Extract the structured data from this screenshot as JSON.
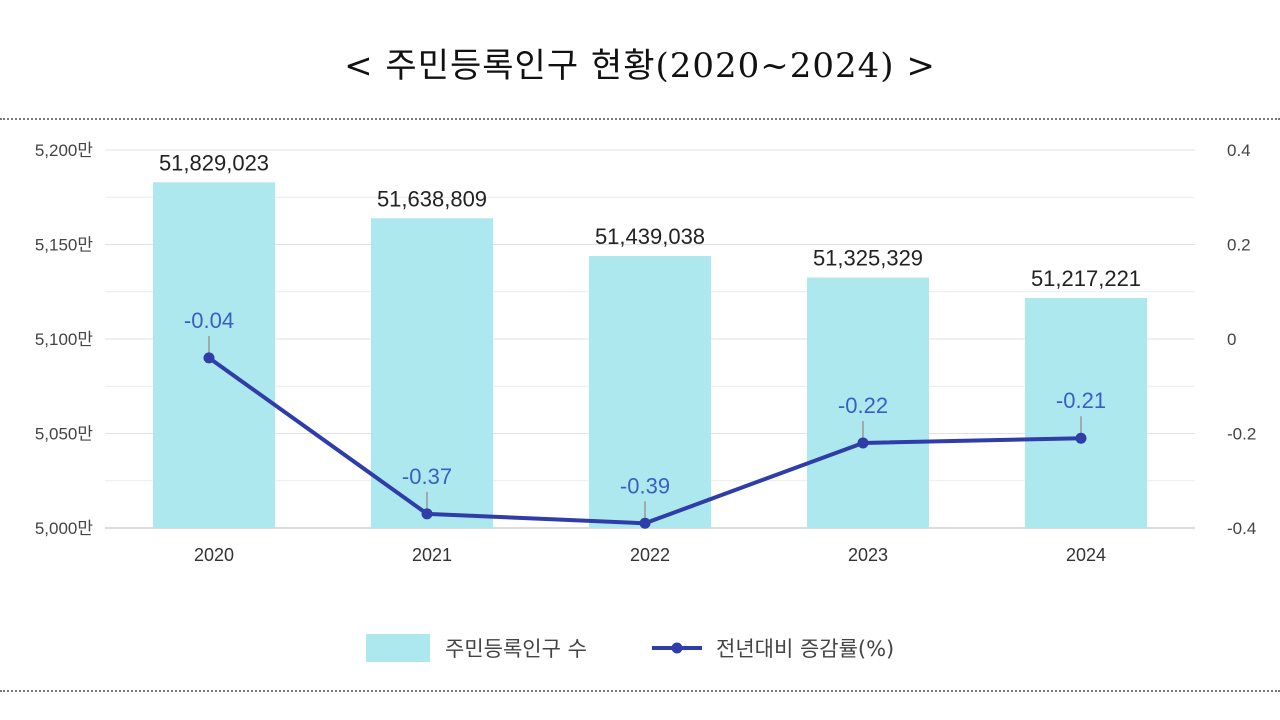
{
  "page": {
    "title": "< 주민등록인구 현황(2020~2024) >"
  },
  "chart_data": {
    "type": "bar+line",
    "categories": [
      "2020",
      "2021",
      "2022",
      "2023",
      "2024"
    ],
    "series": [
      {
        "name": "주민등록인구 수",
        "type": "bar",
        "axis": "left",
        "values": [
          51829023,
          51638809,
          51439038,
          51325329,
          51217221
        ],
        "labels": [
          "51,829,023",
          "51,638,809",
          "51,439,038",
          "51,325,329",
          "51,217,221"
        ],
        "color": "#aee8ef"
      },
      {
        "name": "전년대비 증감률(%)",
        "type": "line",
        "axis": "right",
        "values": [
          -0.04,
          -0.37,
          -0.39,
          -0.22,
          -0.21
        ],
        "labels": [
          "-0.04",
          "-0.37",
          "-0.39",
          "-0.22",
          "-0.21"
        ],
        "color": "#2e3da8",
        "label_color": "#3a5fc4"
      }
    ],
    "y_left": {
      "ylim": [
        50000000,
        52000000
      ],
      "ticks": [
        50000000,
        50500000,
        51000000,
        51500000,
        52000000
      ],
      "tick_labels": [
        "5,000만",
        "5,050만",
        "5,100만",
        "5,150만",
        "5,200만"
      ]
    },
    "y_right": {
      "ylim": [
        -0.4,
        0.4
      ],
      "ticks": [
        -0.4,
        -0.2,
        0,
        0.2,
        0.4
      ],
      "tick_labels": [
        "-0.4",
        "-0.2",
        "0",
        "0.2",
        "0.4"
      ]
    },
    "grid": true,
    "legend": {
      "position": "bottom-center",
      "items": [
        "주민등록인구 수",
        "전년대비 증감률(%)"
      ]
    }
  }
}
